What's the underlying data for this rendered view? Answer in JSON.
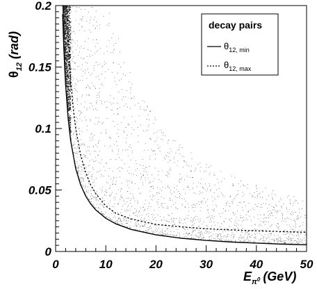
{
  "chart_data": {
    "type": "scatter",
    "title": "",
    "xlabel": {
      "base": "E",
      "sub": "π",
      "sup": "0",
      "unit": "(GeV)"
    },
    "ylabel": {
      "base": "θ",
      "sub": "12",
      "unit": "(rad)"
    },
    "xlim": [
      0,
      50
    ],
    "ylim": [
      0,
      0.2
    ],
    "x_ticks": [
      0,
      10,
      20,
      30,
      40,
      50
    ],
    "x_tick_labels": [
      "0",
      "10",
      "20",
      "30",
      "40",
      "50"
    ],
    "y_ticks": [
      0,
      0.05,
      0.1,
      0.15,
      0.2
    ],
    "y_tick_labels": [
      "0",
      "0.05",
      "0.1",
      "0.15",
      "0.2"
    ],
    "grid": false,
    "legend": {
      "title": "decay pairs",
      "placement": "top-right",
      "entries": [
        {
          "label_base": "θ",
          "label_sub": "12, min",
          "style": "solid"
        },
        {
          "label_base": "θ",
          "label_sub": "12, max",
          "style": "dotted"
        }
      ]
    },
    "series": [
      {
        "key": "min",
        "style": "solid",
        "x": [
          1.4,
          1.6,
          1.8,
          2,
          2.5,
          3,
          4,
          5,
          6,
          7,
          8,
          10,
          12,
          15,
          20,
          25,
          30,
          35,
          40,
          45,
          50
        ],
        "y": [
          0.193,
          0.169,
          0.15,
          0.135,
          0.108,
          0.09,
          0.0675,
          0.054,
          0.045,
          0.0386,
          0.0338,
          0.027,
          0.0225,
          0.018,
          0.0135,
          0.0108,
          0.009,
          0.0077,
          0.0068,
          0.006,
          0.0054
        ]
      },
      {
        "key": "max",
        "style": "dotted",
        "x": [
          2.1,
          2.3,
          2.5,
          3,
          3.5,
          4,
          5,
          6,
          7,
          8,
          10,
          12,
          15,
          20,
          25,
          30,
          35,
          40,
          45,
          50
        ],
        "y": [
          0.2,
          0.195,
          0.175,
          0.14,
          0.117,
          0.1,
          0.078,
          0.064,
          0.054,
          0.047,
          0.037,
          0.031,
          0.0265,
          0.022,
          0.02,
          0.0185,
          0.0175,
          0.0168,
          0.0162,
          0.0156
        ]
      }
    ],
    "scatter_region": {
      "description_of_fill": "dense random pairs between min curve and upper edge",
      "point_count": 2600
    }
  }
}
